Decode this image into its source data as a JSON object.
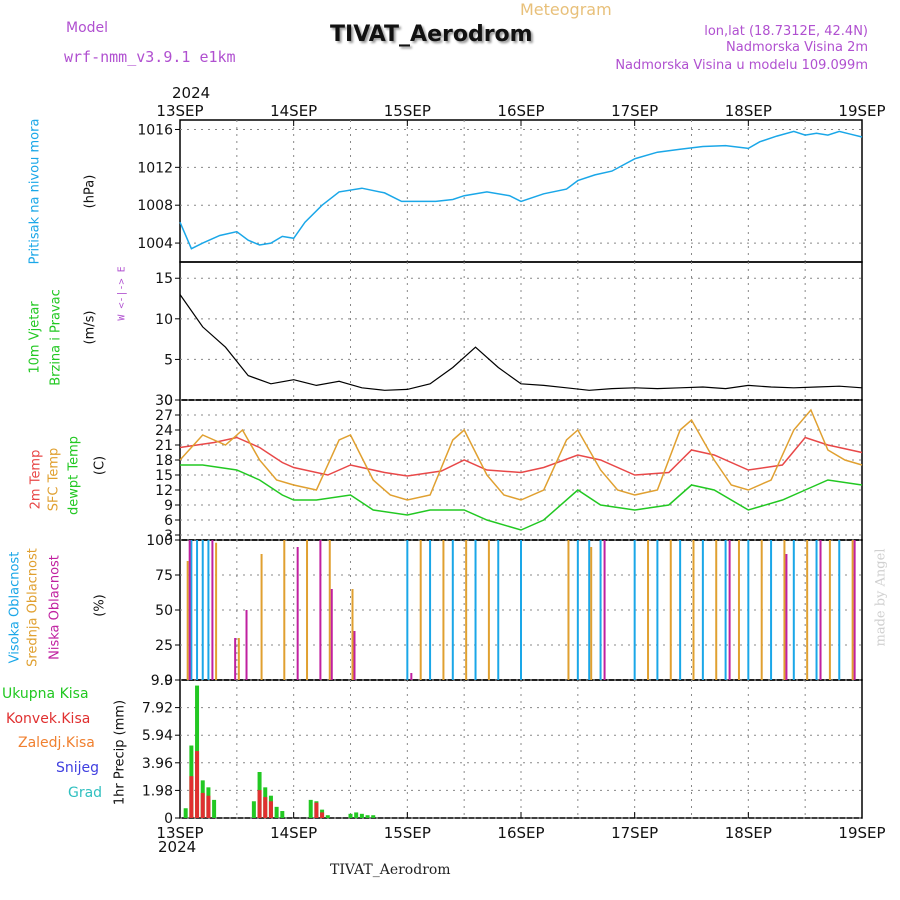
{
  "header": {
    "model_label": "Model",
    "model_name": "wrf-nmm_v3.9.1 e1km",
    "product": "Meteogram",
    "station": "TIVAT_Aerodrom",
    "lonlat": "lon,lat (18.7312E, 42.4N)",
    "elevation": "Nadmorska Visina 2m",
    "model_elevation": "Nadmorska Visina u modelu 109.099m"
  },
  "footer_station": "TIVAT_Aerodrom",
  "watermark": "made by Angel",
  "colors": {
    "pressure": "#1aa7e8",
    "wind_speed": "#000000",
    "gust": "#e03030",
    "temp2m": "#e84848",
    "sfc_temp": "#e0a030",
    "dewpoint": "#22c822",
    "high_cloud": "#1aa7e8",
    "mid_cloud": "#e0a030",
    "low_cloud": "#c020a0",
    "total_precip": "#22c822",
    "conv_precip": "#e03030",
    "strat_precip": "#f08030",
    "snow": "#4040e0",
    "graupel": "#30c0c0"
  },
  "chart_data": [
    {
      "type": "line",
      "panel": "pressure",
      "year_label": "2024",
      "x_ticks": [
        "13SEP",
        "14SEP",
        "15SEP",
        "16SEP",
        "17SEP",
        "18SEP",
        "19SEP"
      ],
      "ylabel": [
        "Pritisak na nivou mora",
        "(hPa)"
      ],
      "ylim": [
        1002,
        1017
      ],
      "yticks": [
        1004,
        1008,
        1012,
        1016
      ],
      "grid": true,
      "series": [
        {
          "x": [
            0,
            0.1,
            0.2,
            0.35,
            0.5,
            0.6,
            0.7,
            0.8,
            0.9,
            1.0,
            1.1,
            1.25,
            1.4,
            1.6,
            1.8,
            1.95,
            2.1,
            2.25,
            2.4,
            2.5,
            2.7,
            2.9,
            3.0,
            3.2,
            3.4,
            3.5,
            3.65,
            3.8,
            4.0,
            4.2,
            4.4,
            4.6,
            4.8,
            5.0,
            5.1,
            5.25,
            5.4,
            5.5,
            5.6,
            5.7,
            5.8,
            5.9,
            6.0
          ],
          "values": [
            1006.2,
            1003.4,
            1004.0,
            1004.8,
            1005.2,
            1004.3,
            1003.8,
            1004.0,
            1004.7,
            1004.5,
            1006.2,
            1008.0,
            1009.4,
            1009.8,
            1009.3,
            1008.4,
            1008.4,
            1008.4,
            1008.6,
            1009.0,
            1009.4,
            1009.0,
            1008.4,
            1009.2,
            1009.7,
            1010.6,
            1011.2,
            1011.6,
            1012.9,
            1013.6,
            1013.9,
            1014.2,
            1014.3,
            1014.0,
            1014.7,
            1015.3,
            1015.8,
            1015.4,
            1015.6,
            1015.4,
            1015.8,
            1015.5,
            1015.2
          ]
        }
      ]
    },
    {
      "type": "line",
      "panel": "wind",
      "ylabel": [
        "10m Vjetar",
        "Brzina i Pravac",
        "(m/s)"
      ],
      "compass": "W <-|-> E",
      "ylim": [
        0,
        17
      ],
      "yticks": [
        0,
        5,
        10,
        15
      ],
      "grid": true,
      "series": [
        {
          "name": "speed",
          "x": [
            0,
            0.2,
            0.4,
            0.6,
            0.8,
            1.0,
            1.2,
            1.4,
            1.6,
            1.8,
            2.0,
            2.2,
            2.4,
            2.6,
            2.8,
            3.0,
            3.2,
            3.4,
            3.6,
            3.8,
            4.0,
            4.2,
            4.4,
            4.6,
            4.8,
            5.0,
            5.2,
            5.4,
            5.6,
            5.8,
            6.0
          ],
          "values": [
            13,
            9,
            6.5,
            3,
            2,
            2.5,
            1.8,
            2.3,
            1.5,
            1.2,
            1.3,
            2.0,
            4.0,
            6.5,
            4.0,
            2.0,
            1.8,
            1.5,
            1.2,
            1.4,
            1.5,
            1.4,
            1.5,
            1.6,
            1.4,
            1.8,
            1.6,
            1.5,
            1.6,
            1.7,
            1.5
          ]
        }
      ]
    },
    {
      "type": "line",
      "panel": "temperature",
      "ylabel": [
        "2m Temp",
        "SFC Temp",
        "dewpt Temp",
        "(C)"
      ],
      "ylim": [
        2,
        30
      ],
      "yticks": [
        3,
        6,
        9,
        12,
        15,
        18,
        21,
        24,
        27,
        30
      ],
      "grid": true,
      "series": [
        {
          "name": "2m Temp",
          "x": [
            0,
            0.3,
            0.5,
            0.7,
            0.9,
            1.0,
            1.3,
            1.5,
            1.8,
            2.0,
            2.3,
            2.5,
            2.7,
            3.0,
            3.2,
            3.5,
            3.7,
            4.0,
            4.3,
            4.5,
            4.7,
            5.0,
            5.3,
            5.5,
            5.7,
            6.0
          ],
          "values": [
            20.5,
            21.5,
            22.5,
            20.5,
            17.5,
            16.5,
            15.0,
            17.0,
            15.5,
            14.8,
            15.8,
            18.0,
            16.0,
            15.5,
            16.5,
            19.0,
            18.0,
            15.0,
            15.5,
            20.0,
            19.0,
            16.0,
            17.0,
            22.5,
            21.0,
            19.5
          ]
        },
        {
          "name": "SFC Temp",
          "x": [
            0,
            0.2,
            0.4,
            0.55,
            0.7,
            0.85,
            1.0,
            1.2,
            1.4,
            1.5,
            1.7,
            1.85,
            2.0,
            2.2,
            2.4,
            2.5,
            2.7,
            2.85,
            3.0,
            3.2,
            3.4,
            3.5,
            3.7,
            3.85,
            4.0,
            4.2,
            4.4,
            4.5,
            4.7,
            4.85,
            5.0,
            5.2,
            5.4,
            5.55,
            5.7,
            5.85,
            6.0
          ],
          "values": [
            18,
            23,
            21,
            24,
            18,
            14,
            13,
            12,
            22,
            23,
            14,
            11,
            10,
            11,
            22,
            24,
            15,
            11,
            10,
            12,
            22,
            24,
            16,
            12,
            11,
            12,
            24,
            26,
            18,
            13,
            12,
            14,
            24,
            28,
            20,
            18,
            17
          ]
        },
        {
          "name": "dewpt Temp",
          "x": [
            0,
            0.2,
            0.5,
            0.7,
            0.9,
            1.0,
            1.2,
            1.5,
            1.7,
            2.0,
            2.2,
            2.5,
            2.7,
            3.0,
            3.2,
            3.5,
            3.7,
            4.0,
            4.3,
            4.5,
            4.7,
            5.0,
            5.3,
            5.5,
            5.7,
            6.0
          ],
          "values": [
            17,
            17,
            16,
            14,
            11,
            10,
            10,
            11,
            8,
            7,
            8,
            8,
            6,
            4,
            6,
            12,
            9,
            8,
            9,
            13,
            12,
            8,
            10,
            12,
            14,
            13
          ]
        }
      ]
    },
    {
      "type": "bar",
      "panel": "cloud",
      "ylabel": [
        "Visoka Oblacnost",
        "Srednja Oblacnost",
        "Niska Oblacnost",
        "(%)"
      ],
      "ylim": [
        0,
        100
      ],
      "yticks": [
        0,
        25,
        50,
        75,
        100
      ],
      "grid": true,
      "series": [
        {
          "name": "Visoka Oblacnost",
          "x": [
            0.1,
            0.15,
            0.2,
            0.25,
            2.0,
            2.2,
            2.4,
            2.6,
            2.8,
            3.0,
            3.5,
            3.6,
            3.7,
            4.0,
            4.2,
            4.4,
            4.6,
            4.8,
            5.0,
            5.2,
            5.4,
            5.6,
            5.8
          ],
          "values": [
            100,
            100,
            100,
            100,
            100,
            100,
            100,
            100,
            100,
            100,
            100,
            100,
            100,
            100,
            100,
            100,
            100,
            100,
            100,
            100,
            100,
            100,
            100
          ]
        },
        {
          "name": "Srednja Oblacnost",
          "x": [
            0.05,
            0.3,
            0.5,
            0.7,
            0.9,
            1.1,
            1.3,
            1.5,
            2.1,
            2.3,
            2.5,
            2.7,
            3.4,
            3.6,
            4.1,
            4.3,
            4.5,
            4.7,
            4.9,
            5.1,
            5.3,
            5.5,
            5.7,
            5.9
          ],
          "values": [
            85,
            98,
            30,
            90,
            100,
            100,
            100,
            65,
            100,
            100,
            100,
            100,
            100,
            95,
            100,
            100,
            100,
            100,
            100,
            100,
            100,
            100,
            100,
            100
          ]
        },
        {
          "name": "Niska Oblacnost",
          "x": [
            0.05,
            0.25,
            0.45,
            0.55,
            1.0,
            1.2,
            1.3,
            1.5,
            2.0,
            2.5,
            3.0,
            3.7,
            4.2,
            4.8,
            5.3,
            5.6,
            5.9
          ],
          "values": [
            100,
            100,
            30,
            50,
            95,
            100,
            65,
            35,
            5,
            0,
            0,
            100,
            0,
            100,
            90,
            100,
            100
          ]
        }
      ]
    },
    {
      "type": "bar",
      "panel": "precip",
      "ylabel": [
        "1hr Precip (mm)"
      ],
      "legend": [
        "Ukupna Kisa",
        "Konvek.Kisa",
        "Zaledj.Kisa",
        "Snijeg",
        "Grad"
      ],
      "ylim": [
        0,
        9.9
      ],
      "yticks": [
        0,
        1.98,
        3.96,
        5.94,
        7.92,
        9.9
      ],
      "x_ticks": [
        "13SEP",
        "14SEP",
        "15SEP",
        "16SEP",
        "17SEP",
        "18SEP",
        "19SEP"
      ],
      "year_label": "2024",
      "grid": true,
      "series": [
        {
          "name": "Ukupna Kisa",
          "x": [
            0.05,
            0.1,
            0.15,
            0.2,
            0.25,
            0.3,
            0.65,
            0.7,
            0.75,
            0.8,
            0.85,
            0.9,
            1.15,
            1.2,
            1.25,
            1.3,
            1.5,
            1.55,
            1.6,
            1.65,
            1.7
          ],
          "values": [
            0.7,
            5.2,
            9.5,
            2.7,
            2.2,
            1.3,
            1.2,
            3.3,
            2.2,
            1.6,
            0.8,
            0.5,
            1.3,
            1.2,
            0.6,
            0.2,
            0.3,
            0.4,
            0.3,
            0.2,
            0.2
          ]
        },
        {
          "name": "Konvek.Kisa",
          "x": [
            0.1,
            0.15,
            0.2,
            0.25,
            0.7,
            0.75,
            0.8,
            1.2,
            1.25
          ],
          "values": [
            3.0,
            4.8,
            1.8,
            1.6,
            2.0,
            1.5,
            1.2,
            1.1,
            0.4
          ]
        },
        {
          "name": "Zaledj.Kisa",
          "x": [],
          "values": []
        },
        {
          "name": "Snijeg",
          "x": [],
          "values": []
        },
        {
          "name": "Grad",
          "x": [],
          "values": []
        }
      ]
    }
  ]
}
